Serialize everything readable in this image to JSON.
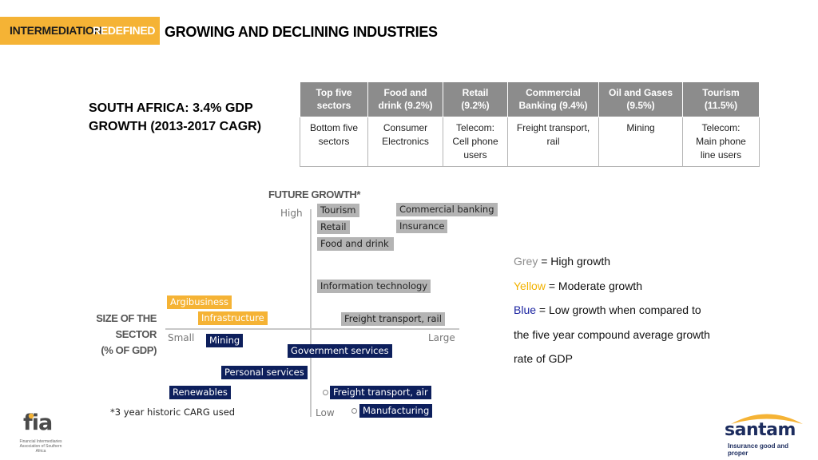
{
  "header": {
    "brand_part1": "INTERMEDIATION",
    "brand_part2": "REDEFINED",
    "title": "GROWING AND DECLINING INDUSTRIES"
  },
  "left_heading": {
    "line1": "SOUTH AFRICA: 3.4% GDP",
    "line2": "GROWTH (2013-2017 CAGR)"
  },
  "table": {
    "top_row": [
      {
        "l1": "Top five",
        "l2": "sectors"
      },
      {
        "l1": "Food and",
        "l2": "drink (9.2%)"
      },
      {
        "l1": "Retail",
        "l2": "(9.2%)"
      },
      {
        "l1": "Commercial",
        "l2": "Banking (9.4%)"
      },
      {
        "l1": "Oil and Gases",
        "l2": "(9.5%)"
      },
      {
        "l1": "Tourism",
        "l2": "(11.5%)"
      }
    ],
    "bottom_row": [
      {
        "l1": "Bottom five",
        "l2": "sectors",
        "l3": ""
      },
      {
        "l1": "Consumer",
        "l2": "Electronics",
        "l3": ""
      },
      {
        "l1": "Telecom:",
        "l2": "Cell phone",
        "l3": "users"
      },
      {
        "l1": "Freight transport,",
        "l2": "rail",
        "l3": ""
      },
      {
        "l1": "Mining",
        "l2": "",
        "l3": ""
      },
      {
        "l1": "Telecom:",
        "l2": "Main phone",
        "l3": "line users"
      }
    ]
  },
  "matrix": {
    "y_axis_title": "FUTURE GROWTH*",
    "y_high": "High",
    "y_low": "Low",
    "x_axis_title_l1": "SIZE OF THE",
    "x_axis_title_l2": "SECTOR",
    "x_axis_title_l3": "(% OF GDP)",
    "x_small": "Small",
    "x_large": "Large",
    "sectors": {
      "tourism": "Tourism",
      "commercial_banking": "Commercial banking",
      "retail": "Retail",
      "insurance": "Insurance",
      "food_and_drink": "Food and drink",
      "information_technology": "Information technology",
      "agribusiness": "Argibusiness",
      "infrastructure": "Infrastructure",
      "freight_rail": "Freight transport, rail",
      "mining": "Mining",
      "government_services": "Government services",
      "personal_services": "Personal services",
      "renewables": "Renewables",
      "freight_air": "Freight transport, air",
      "manufacturing": "Manufacturing"
    },
    "colors": {
      "grey": "#b4b4b4",
      "yellow": "#f5b335",
      "blue": "#0d1f5c"
    },
    "footnote": "*3 year historic CARG used"
  },
  "legend": {
    "grey_word": "Grey",
    "grey_text": " = High growth",
    "yellow_word": "Yellow",
    "yellow_text": " = Moderate growth",
    "blue_word": "Blue",
    "blue_text": " = Low growth when compared to",
    "line4": "the five year compound average growth",
    "line5": "rate of GDP"
  },
  "logos": {
    "fia_text": "fia",
    "fia_sub": "Financial Intermediaries Association of Southern Africa",
    "santam_text": "santam",
    "santam_tag": "Insurance good and proper"
  }
}
